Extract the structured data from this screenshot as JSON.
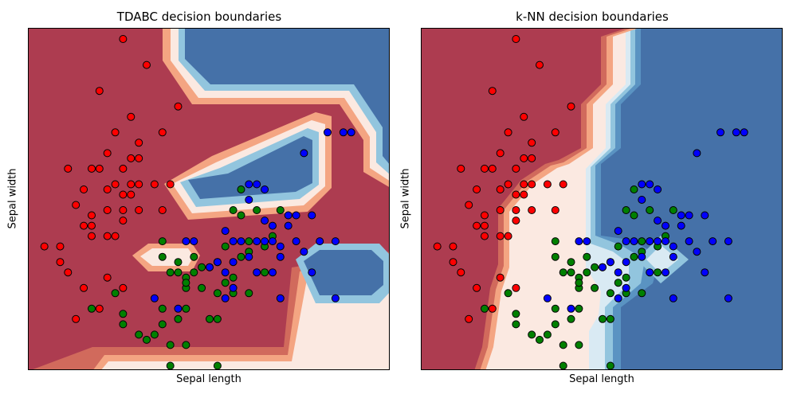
{
  "colors": {
    "class_0": "#ff0000",
    "class_1": "#008000",
    "class_2": "#0000ff",
    "red_region": "#ad3c50",
    "blue_region": "#4571a8",
    "light_region": "#fbe9e1",
    "contour_levels": [
      "#ad3c50",
      "#d16a5c",
      "#f4a582",
      "#fbe9e1",
      "#d9eaf3",
      "#92c5de",
      "#5a93c2",
      "#4571a8"
    ]
  },
  "chart_data": [
    {
      "type": "scatter",
      "title": "TDABC decision boundaries",
      "xlabel": "Sepal length",
      "ylabel": "Sepal width",
      "xlim": [
        3.8,
        8.4
      ],
      "ylim": [
        1.5,
        4.8
      ],
      "xticks_visible": false,
      "yticks_visible": false,
      "grid": false,
      "legend": "none",
      "background": "filled decision-boundary contour (RdBu colormap)",
      "points": {
        "class_0": [
          [
            5.0,
            4.7
          ],
          [
            5.3,
            4.45
          ],
          [
            4.7,
            4.2
          ],
          [
            5.7,
            4.05
          ],
          [
            5.1,
            3.95
          ],
          [
            4.9,
            3.8
          ],
          [
            5.5,
            3.8
          ],
          [
            5.2,
            3.7
          ],
          [
            4.8,
            3.6
          ],
          [
            5.1,
            3.55
          ],
          [
            5.2,
            3.55
          ],
          [
            4.3,
            3.45
          ],
          [
            4.6,
            3.45
          ],
          [
            4.7,
            3.45
          ],
          [
            5.0,
            3.45
          ],
          [
            4.5,
            3.25
          ],
          [
            4.8,
            3.25
          ],
          [
            4.9,
            3.3
          ],
          [
            5.1,
            3.3
          ],
          [
            5.2,
            3.3
          ],
          [
            5.4,
            3.3
          ],
          [
            5.6,
            3.3
          ],
          [
            5.0,
            3.2
          ],
          [
            5.1,
            3.2
          ],
          [
            4.4,
            3.1
          ],
          [
            4.8,
            3.05
          ],
          [
            5.0,
            3.05
          ],
          [
            5.2,
            3.05
          ],
          [
            5.5,
            3.05
          ],
          [
            4.6,
            3.0
          ],
          [
            5.0,
            2.95
          ],
          [
            4.5,
            2.9
          ],
          [
            4.6,
            2.9
          ],
          [
            4.6,
            2.8
          ],
          [
            4.8,
            2.8
          ],
          [
            4.9,
            2.8
          ],
          [
            4.0,
            2.7
          ],
          [
            4.2,
            2.7
          ],
          [
            4.2,
            2.55
          ],
          [
            4.3,
            2.45
          ],
          [
            4.8,
            2.4
          ],
          [
            5.0,
            2.3
          ],
          [
            4.4,
            2.0
          ],
          [
            4.5,
            2.3
          ],
          [
            4.7,
            2.1
          ]
        ],
        "class_1": [
          [
            6.5,
            3.25
          ],
          [
            6.4,
            3.05
          ],
          [
            6.5,
            3.0
          ],
          [
            6.7,
            3.05
          ],
          [
            6.6,
            2.75
          ],
          [
            5.8,
            2.4
          ],
          [
            6.2,
            2.55
          ],
          [
            6.4,
            2.4
          ],
          [
            6.8,
            2.45
          ],
          [
            6.0,
            2.5
          ],
          [
            6.1,
            2.5
          ],
          [
            6.3,
            2.7
          ],
          [
            7.0,
            3.05
          ],
          [
            6.9,
            2.8
          ],
          [
            6.6,
            2.65
          ],
          [
            5.7,
            2.45
          ],
          [
            5.8,
            2.1
          ],
          [
            6.2,
            2.0
          ],
          [
            5.7,
            2.0
          ],
          [
            5.5,
            2.1
          ],
          [
            5.0,
            2.05
          ],
          [
            4.9,
            2.25
          ],
          [
            5.2,
            1.85
          ],
          [
            5.3,
            1.8
          ],
          [
            5.6,
            1.75
          ],
          [
            5.8,
            1.75
          ],
          [
            6.2,
            1.55
          ],
          [
            5.6,
            1.55
          ],
          [
            5.5,
            1.95
          ],
          [
            6.1,
            2.0
          ],
          [
            6.6,
            2.25
          ],
          [
            6.4,
            2.25
          ],
          [
            6.0,
            2.3
          ],
          [
            6.2,
            2.25
          ],
          [
            6.5,
            2.6
          ],
          [
            5.9,
            2.45
          ],
          [
            5.8,
            2.3
          ],
          [
            5.5,
            2.75
          ],
          [
            5.6,
            2.45
          ],
          [
            6.3,
            2.35
          ],
          [
            6.8,
            2.7
          ],
          [
            5.9,
            2.6
          ],
          [
            5.5,
            2.6
          ],
          [
            5.7,
            2.55
          ],
          [
            5.8,
            2.35
          ],
          [
            4.6,
            2.1
          ],
          [
            5.0,
            1.95
          ],
          [
            5.4,
            1.85
          ]
        ],
        "class_2": [
          [
            7.6,
            3.8
          ],
          [
            7.8,
            3.8
          ],
          [
            7.3,
            3.6
          ],
          [
            6.6,
            3.3
          ],
          [
            6.7,
            3.3
          ],
          [
            6.8,
            3.25
          ],
          [
            6.6,
            3.15
          ],
          [
            7.1,
            3.0
          ],
          [
            7.2,
            3.0
          ],
          [
            6.8,
            2.95
          ],
          [
            7.1,
            2.9
          ],
          [
            7.4,
            3.0
          ],
          [
            5.7,
            2.1
          ],
          [
            5.4,
            2.2
          ],
          [
            6.3,
            2.2
          ],
          [
            6.4,
            2.3
          ],
          [
            7.0,
            2.2
          ],
          [
            6.1,
            2.5
          ],
          [
            5.8,
            2.75
          ],
          [
            5.9,
            2.75
          ],
          [
            6.4,
            2.75
          ],
          [
            6.5,
            2.75
          ],
          [
            6.6,
            2.6
          ],
          [
            6.7,
            2.75
          ],
          [
            6.8,
            2.75
          ],
          [
            6.9,
            2.75
          ],
          [
            7.0,
            2.6
          ],
          [
            7.2,
            2.75
          ],
          [
            7.5,
            2.75
          ],
          [
            7.7,
            2.75
          ],
          [
            7.3,
            2.65
          ],
          [
            6.9,
            2.45
          ],
          [
            7.4,
            2.45
          ],
          [
            6.2,
            2.55
          ],
          [
            6.3,
            2.45
          ],
          [
            6.4,
            2.55
          ],
          [
            6.7,
            2.45
          ],
          [
            7.7,
            2.2
          ],
          [
            7.9,
            3.8
          ],
          [
            6.3,
            2.85
          ],
          [
            7.0,
            2.7
          ],
          [
            6.9,
            2.9
          ]
        ]
      }
    },
    {
      "type": "scatter",
      "title": "k-NN decision boundaries",
      "xlabel": "Sepal length",
      "ylabel": "Sepal width",
      "xlim": [
        3.8,
        8.4
      ],
      "ylim": [
        1.5,
        4.8
      ],
      "xticks_visible": false,
      "yticks_visible": false,
      "grid": false,
      "legend": "none",
      "background": "filled decision-boundary contour (RdBu colormap)"
    }
  ]
}
